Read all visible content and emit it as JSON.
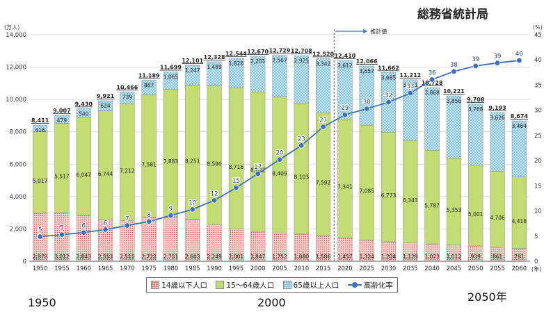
{
  "source": "総務省統計局",
  "legend": {
    "under14": "14歳以下人口",
    "working": "15～64歳人口",
    "over65": "65歳以上人口",
    "aging": "高齢化率"
  },
  "bottom_labels": {
    "left": "1950",
    "middle": "2000",
    "right": "2050年"
  },
  "colors": {
    "under14": "#f4c9c4",
    "working": "#c2dc73",
    "over65": "#d2ebf7",
    "line": "#3d6fbf"
  },
  "chart_data": {
    "type": "bar",
    "stacked": true,
    "left_unit": "(万人)",
    "right_unit": "(%)",
    "x_unit": "(年)",
    "projection_label": "推計値",
    "ylim": [
      0,
      14000
    ],
    "yticks": [
      "0",
      "2,000",
      "4,000",
      "6,000",
      "8,000",
      "10,000",
      "12,000",
      "14,000"
    ],
    "y2lim": [
      0,
      45
    ],
    "y2ticks": [
      "0",
      "5",
      "10",
      "15",
      "20",
      "25",
      "30",
      "35",
      "40",
      "45"
    ],
    "categories": [
      "1950",
      "1955",
      "1960",
      "1965",
      "1970",
      "1975",
      "1980",
      "1985",
      "1990",
      "1995",
      "2000",
      "2005",
      "2010",
      "2015",
      "2020",
      "2025",
      "2030",
      "2035",
      "2040",
      "2045",
      "2050",
      "2055",
      "2060"
    ],
    "series": [
      {
        "name": "14歳以下人口",
        "values": [
          2979,
          3012,
          2843,
          2553,
          2515,
          2722,
          2751,
          2603,
          2249,
          2001,
          1847,
          1752,
          1680,
          1586,
          1457,
          1324,
          1204,
          1129,
          1073,
          1012,
          939,
          861,
          791
        ]
      },
      {
        "name": "15～64歳人口",
        "values": [
          5017,
          5517,
          6047,
          6744,
          7212,
          7581,
          7883,
          8251,
          8590,
          8716,
          8622,
          8409,
          8103,
          7592,
          7341,
          7085,
          6773,
          6343,
          5787,
          5353,
          5001,
          4706,
          4418
        ]
      },
      {
        "name": "65歳以上人口",
        "values": [
          416,
          479,
          540,
          624,
          739,
          887,
          1065,
          1247,
          1489,
          1826,
          2201,
          2567,
          2925,
          3342,
          3612,
          3657,
          3685,
          3741,
          3868,
          3856,
          3768,
          3626,
          3464
        ]
      }
    ],
    "totals": [
      "8,411",
      "9,007",
      "9,430",
      "9,921",
      "10,466",
      "11,189",
      "11,699",
      "12,101",
      "12,328",
      "12,544",
      "12,670",
      "12,729",
      "12,708",
      "12,520",
      "12,410",
      "12,066",
      "11,662",
      "11,212",
      "10,728",
      "10,221",
      "9,708",
      "9,193",
      "8,674"
    ],
    "aging_rate": {
      "name": "高齢化率",
      "values": [
        4.9,
        5.3,
        5.7,
        6.3,
        7.1,
        7.9,
        9.1,
        10.3,
        12.1,
        14.6,
        17.4,
        20.2,
        23.0,
        26.7,
        29.1,
        30.3,
        31.6,
        33.4,
        36.1,
        37.7,
        38.8,
        39.4,
        39.9
      ]
    },
    "aging_labels": [
      "5",
      "5",
      "6",
      "6",
      "7",
      "8",
      "9",
      "10",
      "12",
      "15",
      "17",
      "20",
      "23",
      "27",
      "29",
      "30",
      "32",
      "33",
      "36",
      "38",
      "39",
      "39",
      "40"
    ],
    "projection_start": "2020"
  }
}
